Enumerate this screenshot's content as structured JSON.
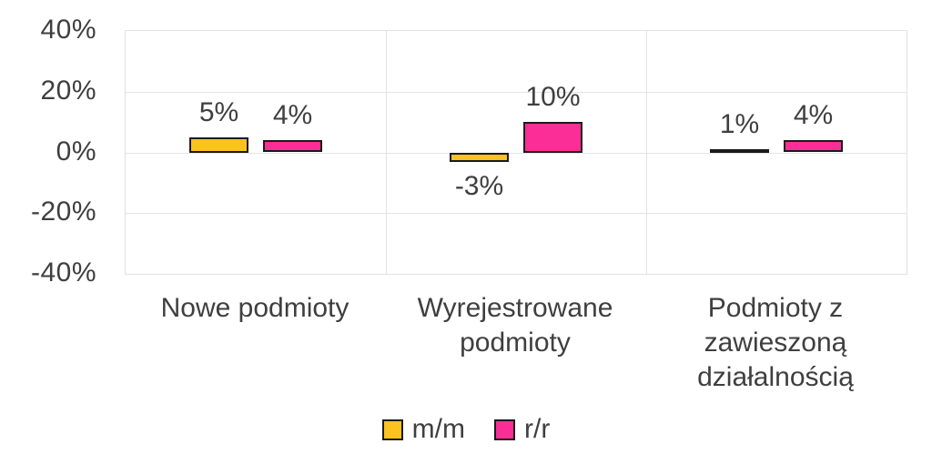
{
  "chart_data": {
    "type": "bar",
    "categories": [
      "Nowe podmioty",
      "Wyrejestrowane podmioty",
      "Podmioty z zawieszoną działalnością"
    ],
    "series": [
      {
        "name": "m/m",
        "color": "#fcc21d",
        "values": [
          5,
          -3,
          1
        ],
        "labels": [
          "5%",
          "-3%",
          "1%"
        ]
      },
      {
        "name": "r/r",
        "color": "#fa2e96",
        "values": [
          4,
          10,
          4
        ],
        "labels": [
          "4%",
          "10%",
          "4%"
        ]
      }
    ],
    "title": "",
    "xlabel": "",
    "ylabel": "",
    "ylim": [
      -40,
      40
    ],
    "yticks": [
      {
        "value": 40,
        "label": "40%"
      },
      {
        "value": 20,
        "label": "20%"
      },
      {
        "value": 0,
        "label": "0%"
      },
      {
        "value": -20,
        "label": "-20%"
      },
      {
        "value": -40,
        "label": "-40%"
      }
    ],
    "grid": true,
    "legend_position": "bottom"
  },
  "styles": {
    "background": "#ffffff",
    "text_color": "#3f3f3f",
    "grid_color": "#e4e4e4",
    "bar_border_color": "#1a1a1a",
    "series_colors": {
      "m/m": "#fcc21d",
      "r/r": "#fa2e96"
    }
  }
}
